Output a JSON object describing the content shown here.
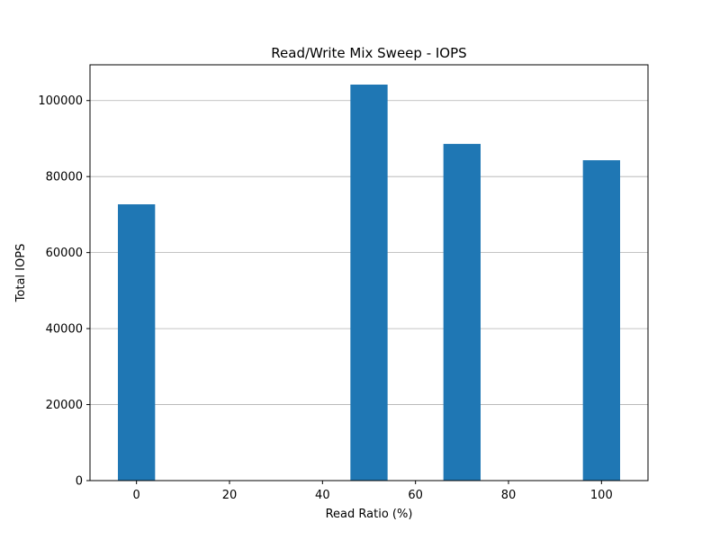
{
  "chart_data": {
    "type": "bar",
    "title": "Read/Write Mix Sweep - IOPS",
    "xlabel": "Read Ratio (%)",
    "ylabel": "Total IOPS",
    "x": [
      0,
      50,
      70,
      100
    ],
    "values": [
      72700,
      104200,
      88600,
      84300
    ],
    "bar_width": 8,
    "xlim": [
      -10,
      110
    ],
    "ylim": [
      0,
      109410
    ],
    "xticks": [
      0,
      20,
      40,
      60,
      80,
      100
    ],
    "yticks": [
      0,
      20000,
      40000,
      60000,
      80000,
      100000
    ],
    "grid": "y-axis major",
    "color": "#1f77b4"
  }
}
